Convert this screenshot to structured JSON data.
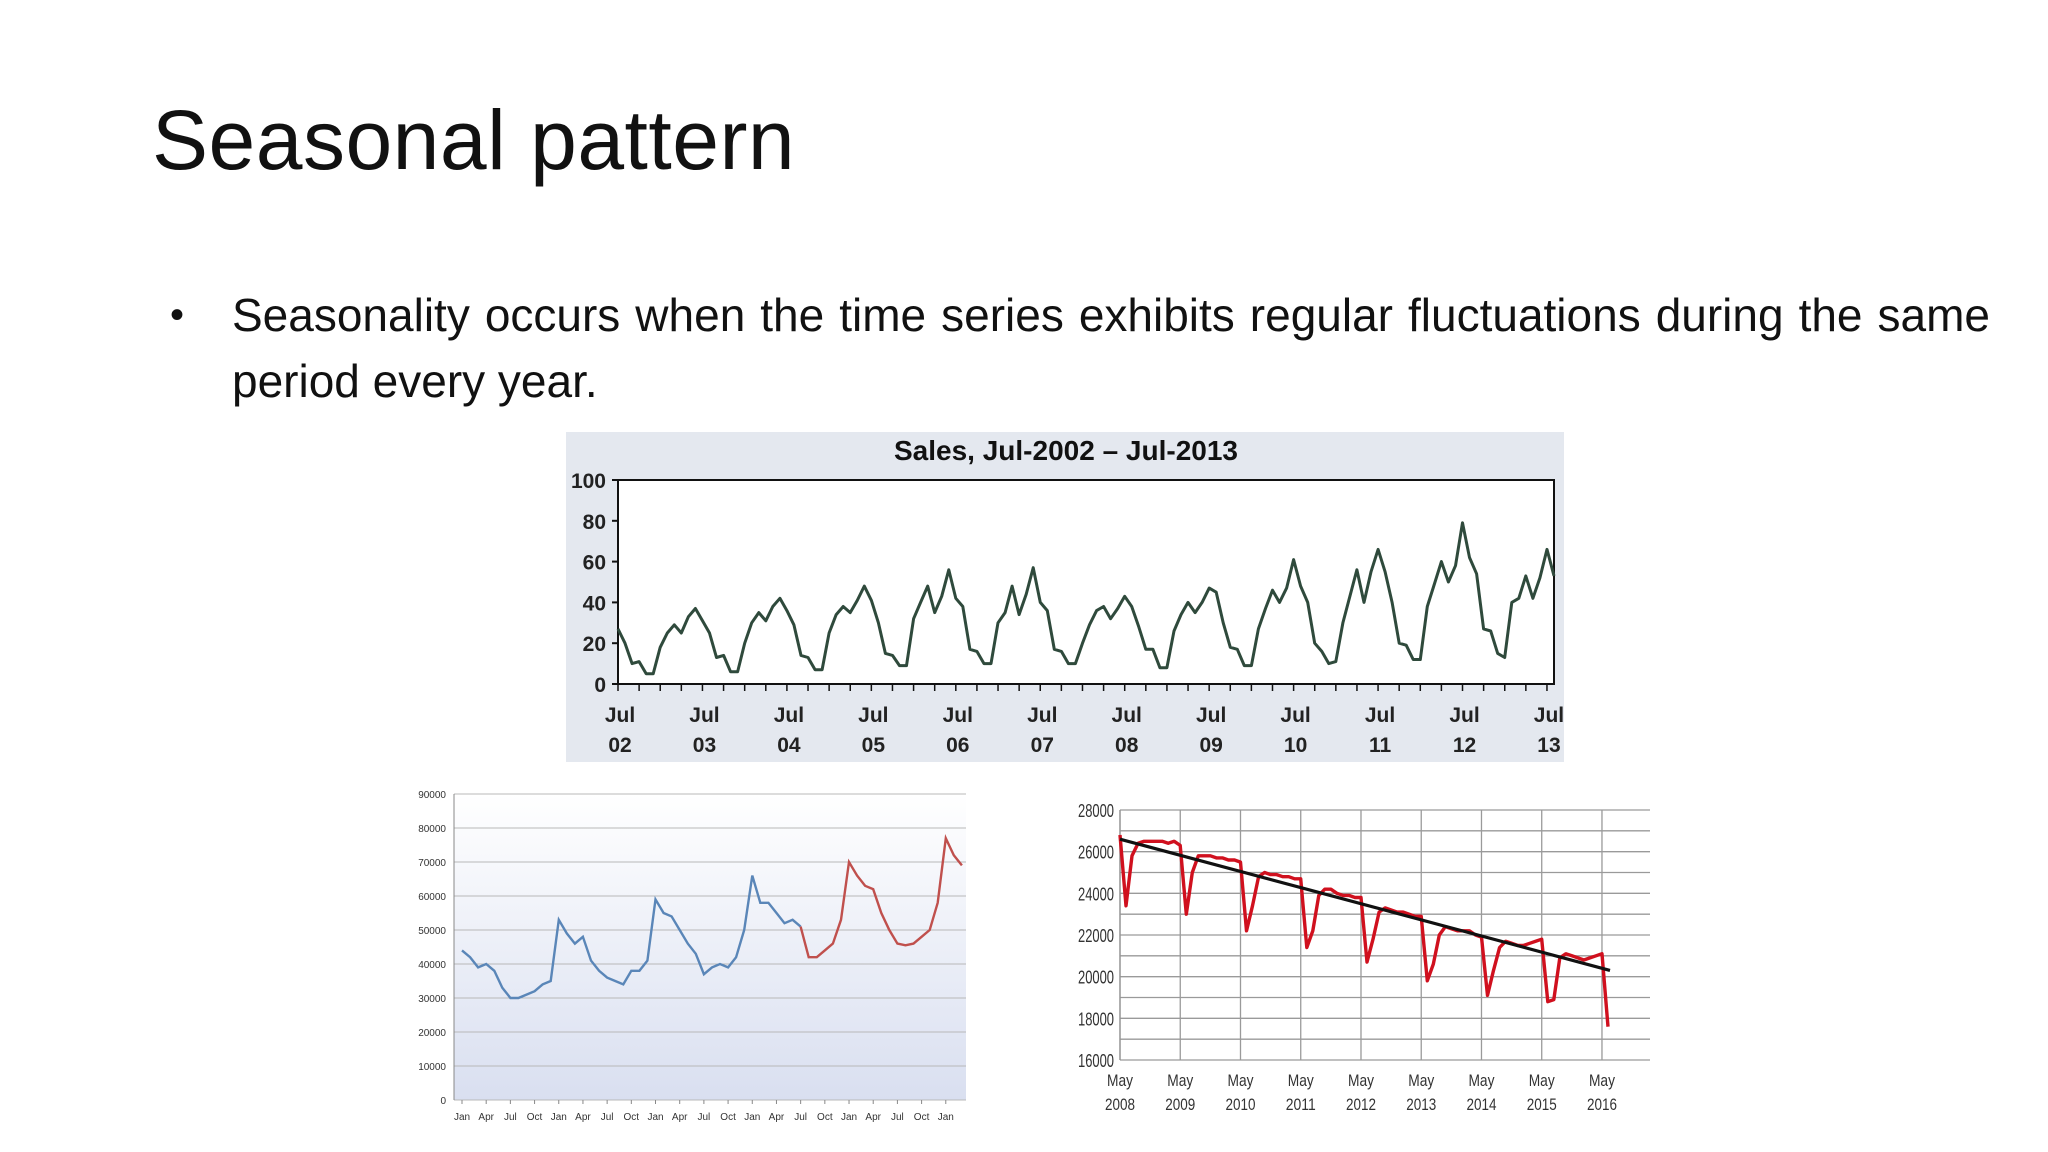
{
  "slide": {
    "title": "Seasonal pattern",
    "bullet": "Seasonality occurs when the time series exhibits regular fluctuations during the same period every year."
  },
  "chart_data": [
    {
      "type": "line",
      "title": "Sales, Jul-2002 – Jul-2013",
      "ylim": [
        0,
        100
      ],
      "yticks": [
        0,
        20,
        40,
        60,
        80,
        100
      ],
      "xtick_labels": [
        [
          "Jul",
          "02"
        ],
        [
          "Jul",
          "03"
        ],
        [
          "Jul",
          "04"
        ],
        [
          "Jul",
          "05"
        ],
        [
          "Jul",
          "06"
        ],
        [
          "Jul",
          "07"
        ],
        [
          "Jul",
          "08"
        ],
        [
          "Jul",
          "09"
        ],
        [
          "Jul",
          "10"
        ],
        [
          "Jul",
          "11"
        ],
        [
          "Jul",
          "12"
        ],
        [
          "Jul",
          "13"
        ]
      ],
      "x_start": "Jul-2002",
      "x_step": "month",
      "series_color": "#2f4a3c",
      "values": [
        27,
        20,
        10,
        11,
        5,
        5,
        18,
        25,
        29,
        25,
        33,
        37,
        31,
        25,
        13,
        14,
        6,
        6,
        20,
        30,
        35,
        31,
        38,
        42,
        36,
        29,
        14,
        13,
        7,
        7,
        25,
        34,
        38,
        35,
        41,
        48,
        41,
        30,
        15,
        14,
        9,
        9,
        32,
        40,
        48,
        35,
        43,
        56,
        42,
        38,
        17,
        16,
        10,
        10,
        30,
        35,
        48,
        34,
        44,
        57,
        40,
        36,
        17,
        16,
        10,
        10,
        20,
        29,
        36,
        38,
        32,
        37,
        43,
        38,
        28,
        17,
        17,
        8,
        8,
        26,
        34,
        40,
        35,
        40,
        47,
        45,
        30,
        18,
        17,
        9,
        9,
        27,
        37,
        46,
        40,
        47,
        61,
        48,
        40,
        20,
        16,
        10,
        11,
        30,
        43,
        56,
        40,
        55,
        66,
        55,
        40,
        20,
        19,
        12,
        12,
        38,
        49,
        60,
        50,
        58,
        79,
        62,
        54,
        27,
        26,
        15,
        13,
        40,
        42,
        53,
        42,
        52,
        66,
        53
      ]
    },
    {
      "type": "line",
      "ylim": [
        0,
        90000
      ],
      "yticks": [
        0,
        10000,
        20000,
        30000,
        40000,
        50000,
        60000,
        70000,
        80000,
        90000
      ],
      "xtick_labels": [
        "Jan",
        "Apr",
        "Jul",
        "Oct",
        "Jan",
        "Apr",
        "Jul",
        "Oct",
        "Jan",
        "Apr",
        "Jul",
        "Oct",
        "Jan",
        "Apr",
        "Jul",
        "Oct",
        "Jan",
        "Apr",
        "Jul",
        "Oct",
        "Jan"
      ],
      "x_step": "month",
      "grid": true,
      "series": [
        {
          "color": "#5a86b8",
          "values": [
            44000,
            42000,
            39000,
            40000,
            38000,
            33000,
            30000,
            30000,
            31000,
            32000,
            34000,
            35000,
            53000,
            49000,
            46000,
            48000,
            41000,
            38000,
            36000,
            35000,
            34000,
            38000,
            38000,
            41000,
            59000,
            55000,
            54000,
            50000,
            46000,
            43000,
            37000,
            39000,
            40000,
            39000,
            42000,
            50000,
            66000,
            58000,
            58000,
            55000,
            52000,
            53000,
            51000
          ]
        },
        {
          "color": "#c0504d",
          "values": [
            51000,
            42000,
            42000,
            44000,
            46000,
            53000,
            70000,
            66000,
            63000,
            62000,
            55000,
            50000,
            46000,
            45500,
            46000,
            48000,
            50000,
            58000,
            77000,
            72000,
            69000
          ]
        }
      ]
    },
    {
      "type": "line",
      "ylim": [
        16000,
        28000
      ],
      "yticks": [
        16000,
        18000,
        20000,
        22000,
        24000,
        26000,
        28000
      ],
      "xtick_labels": [
        [
          "May",
          "2008"
        ],
        [
          "May",
          "2009"
        ],
        [
          "May",
          "2010"
        ],
        [
          "May",
          "2011"
        ],
        [
          "May",
          "2012"
        ],
        [
          "May",
          "2013"
        ],
        [
          "May",
          "2014"
        ],
        [
          "May",
          "2015"
        ],
        [
          "May",
          "2016"
        ]
      ],
      "x_step": "month",
      "grid": true,
      "series_color": "#d0101e",
      "trend_color": "#111111",
      "trend": [
        26600,
        20300
      ],
      "values": [
        26800,
        23400,
        25800,
        26400,
        26500,
        26500,
        26500,
        26500,
        26400,
        26500,
        26300,
        23000,
        25000,
        25800,
        25800,
        25800,
        25700,
        25700,
        25600,
        25600,
        25500,
        22200,
        23400,
        24800,
        25000,
        24900,
        24900,
        24800,
        24800,
        24700,
        24700,
        21400,
        22200,
        23900,
        24200,
        24200,
        24000,
        23900,
        23900,
        23800,
        23800,
        20700,
        21800,
        23100,
        23300,
        23200,
        23100,
        23100,
        23000,
        22900,
        22900,
        19800,
        20600,
        22000,
        22400,
        22300,
        22200,
        22200,
        22200,
        22000,
        21900,
        19100,
        20300,
        21400,
        21700,
        21600,
        21500,
        21500,
        21600,
        21700,
        21800,
        18800,
        18900,
        20900,
        21100,
        21000,
        20900,
        20800,
        20900,
        21000,
        21100,
        17600
      ]
    }
  ]
}
